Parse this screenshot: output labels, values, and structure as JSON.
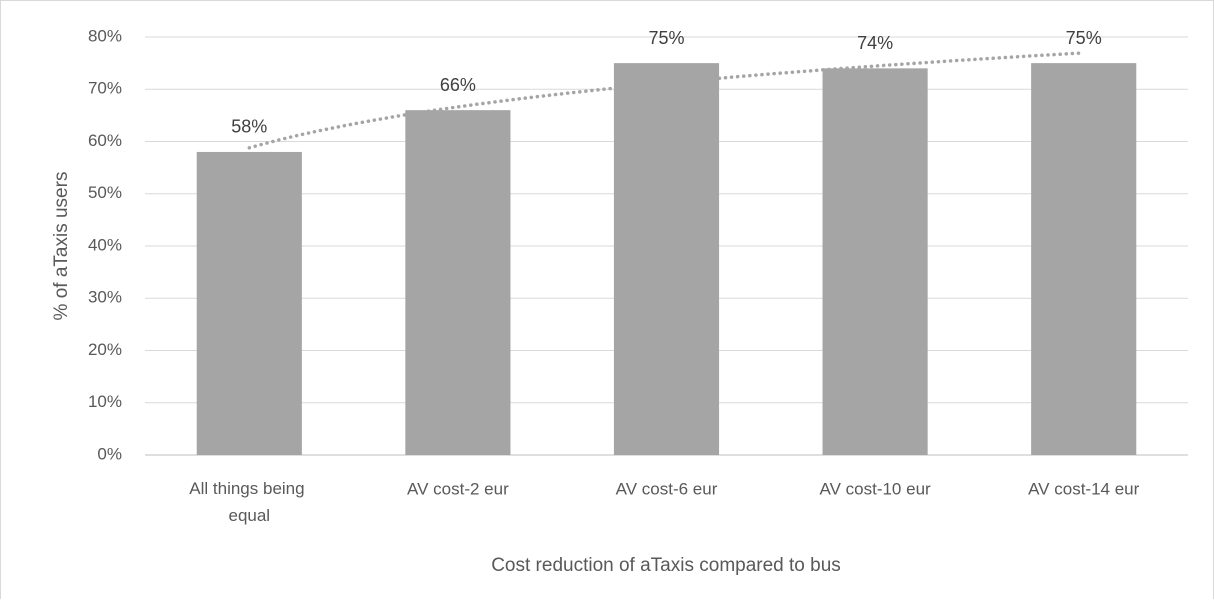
{
  "chart_data": {
    "type": "bar",
    "x_label": "Cost reduction of aTaxis compared to bus",
    "y_label": "% of aTaxis users",
    "categories": [
      "All things being equal",
      "AV cost-2 eur",
      "AV cost-6 eur",
      "AV cost-10 eur",
      "AV cost-14 eur"
    ],
    "values": [
      58,
      66,
      75,
      74,
      75
    ],
    "value_labels": [
      "58%",
      "66%",
      "75%",
      "74%",
      "75%"
    ],
    "color": "#a5a5a5",
    "ylim": [
      0,
      80
    ],
    "yticks": [
      {
        "value": 0,
        "label": "0%"
      },
      {
        "value": 10,
        "label": "10%"
      },
      {
        "value": 20,
        "label": "20%"
      },
      {
        "value": 30,
        "label": "30%"
      },
      {
        "value": 40,
        "label": "40%"
      },
      {
        "value": 50,
        "label": "50%"
      },
      {
        "value": 60,
        "label": "60%"
      },
      {
        "value": 70,
        "label": "70%"
      },
      {
        "value": 80,
        "label": "80%"
      }
    ],
    "grid": true,
    "trendline": "log",
    "trendline_color": "#a5a5a5"
  }
}
